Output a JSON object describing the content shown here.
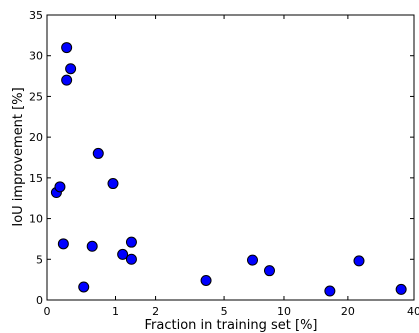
{
  "chart_data": {
    "type": "scatter",
    "title": "",
    "xlabel": "Fraction in training set [%]",
    "ylabel": "IoU improvement [%]",
    "x_scale": "log",
    "xlim": [
      0,
      40
    ],
    "ylim": [
      0,
      35
    ],
    "x_ticks": [
      0,
      1,
      2,
      5,
      10,
      20,
      40
    ],
    "x_tick_labels": [
      "0",
      "1",
      "2",
      "5",
      "10",
      "20",
      "40"
    ],
    "y_ticks": [
      0,
      5,
      10,
      15,
      20,
      25,
      30,
      35
    ],
    "y_tick_labels": [
      "0",
      "5",
      "10",
      "15",
      "20",
      "25",
      "30",
      "35"
    ],
    "grid": false,
    "marker_color": "#0000ff",
    "marker_edge_color": "#000000",
    "points": [
      {
        "x": 0.1,
        "y": 13.2
      },
      {
        "x": 0.14,
        "y": 13.9
      },
      {
        "x": 0.18,
        "y": 6.9
      },
      {
        "x": 0.22,
        "y": 31.0
      },
      {
        "x": 0.22,
        "y": 27.0
      },
      {
        "x": 0.27,
        "y": 28.4
      },
      {
        "x": 0.45,
        "y": 1.6
      },
      {
        "x": 0.58,
        "y": 6.6
      },
      {
        "x": 0.68,
        "y": 18.0
      },
      {
        "x": 0.95,
        "y": 14.3
      },
      {
        "x": 1.15,
        "y": 5.6
      },
      {
        "x": 1.35,
        "y": 7.1
      },
      {
        "x": 1.35,
        "y": 5.0
      },
      {
        "x": 4.0,
        "y": 2.4
      },
      {
        "x": 7.0,
        "y": 4.9
      },
      {
        "x": 8.5,
        "y": 3.6
      },
      {
        "x": 16.5,
        "y": 1.1
      },
      {
        "x": 22.5,
        "y": 4.8
      },
      {
        "x": 35.0,
        "y": 1.3
      }
    ]
  }
}
